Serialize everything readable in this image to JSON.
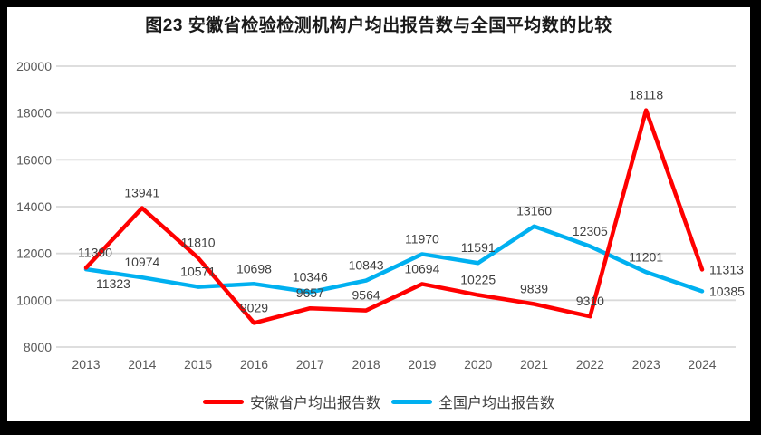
{
  "chart_data": {
    "type": "line",
    "title": "图23 安徽省检验检测机构户均出报告数与全国平均数的比较",
    "categories": [
      "2013",
      "2014",
      "2015",
      "2016",
      "2017",
      "2018",
      "2019",
      "2020",
      "2021",
      "2022",
      "2023",
      "2024"
    ],
    "series": [
      {
        "name": "安徽省户均出报告数",
        "color": "#FF0000",
        "values": [
          11390,
          13941,
          11810,
          9029,
          9657,
          9564,
          10694,
          10225,
          9839,
          9310,
          18118,
          11313
        ]
      },
      {
        "name": "全国户均出报告数",
        "color": "#00B0F0",
        "values": [
          11323,
          10974,
          10571,
          10698,
          10346,
          10843,
          11970,
          11591,
          13160,
          12305,
          11201,
          10385
        ]
      }
    ],
    "xlabel": "",
    "ylabel": "",
    "ylim": [
      8000,
      20000
    ],
    "yticks": [
      20000,
      18000,
      16000,
      14000,
      12000,
      10000,
      8000
    ],
    "grid": "horizontal-only",
    "legend_position": "bottom",
    "show_data_labels": true,
    "label_overrides": [
      {
        "series": 0,
        "index": 0,
        "dx": 10
      },
      {
        "series": 0,
        "index": 11,
        "mode": "right"
      },
      {
        "series": 1,
        "index": 0,
        "mode": "below",
        "dx": 30
      },
      {
        "series": 1,
        "index": 11,
        "mode": "right"
      }
    ],
    "styles": {
      "frame_color": "#000000",
      "background": "#ffffff",
      "grid_color": "#D9D9D9",
      "axis_label_color": "#595959",
      "data_label_color": "#404040",
      "title_color": "#1a1a1a",
      "legend_text_color": "#404040"
    }
  }
}
